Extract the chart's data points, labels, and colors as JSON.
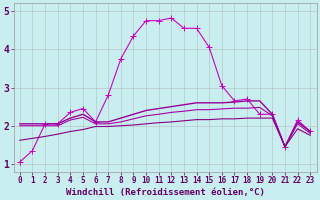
{
  "xlabel": "Windchill (Refroidissement éolien,°C)",
  "xlim_min": -0.5,
  "xlim_max": 23.5,
  "ylim_min": 0.8,
  "ylim_max": 5.2,
  "xtick_labels": [
    "0",
    "1",
    "2",
    "3",
    "4",
    "5",
    "6",
    "7",
    "8",
    "9",
    "10",
    "11",
    "12",
    "13",
    "14",
    "15",
    "16",
    "17",
    "18",
    "19",
    "20",
    "21",
    "22",
    "23"
  ],
  "ytick_values": [
    1,
    2,
    3,
    4,
    5
  ],
  "background_color": "#c8eef0",
  "grid_color": "#b0b0b0",
  "lines": [
    {
      "x": [
        0,
        1,
        2,
        3,
        4,
        5,
        6,
        7,
        8,
        9,
        10,
        11,
        12,
        13,
        14,
        15,
        16,
        17,
        18,
        19,
        20,
        21,
        22,
        23
      ],
      "y": [
        1.05,
        1.35,
        2.05,
        2.05,
        2.35,
        2.45,
        2.1,
        2.8,
        3.75,
        4.35,
        4.75,
        4.75,
        4.82,
        4.55,
        4.55,
        4.05,
        3.05,
        2.65,
        2.7,
        2.3,
        2.3,
        1.45,
        2.15,
        1.85
      ],
      "color": "#cc00cc",
      "marker": "+",
      "linewidth": 0.8,
      "markersize": 4
    },
    {
      "x": [
        0,
        1,
        2,
        3,
        4,
        5,
        6,
        7,
        8,
        9,
        10,
        11,
        12,
        13,
        14,
        15,
        16,
        17,
        18,
        19,
        20,
        21,
        22,
        23
      ],
      "y": [
        2.05,
        2.05,
        2.05,
        2.05,
        2.2,
        2.3,
        2.1,
        2.1,
        2.2,
        2.3,
        2.4,
        2.45,
        2.5,
        2.55,
        2.6,
        2.6,
        2.6,
        2.62,
        2.65,
        2.65,
        2.3,
        1.45,
        2.1,
        1.85
      ],
      "color": "#990099",
      "marker": null,
      "linewidth": 1.0,
      "markersize": 0
    },
    {
      "x": [
        0,
        1,
        2,
        3,
        4,
        5,
        6,
        7,
        8,
        9,
        10,
        11,
        12,
        13,
        14,
        15,
        16,
        17,
        18,
        19,
        20,
        21,
        22,
        23
      ],
      "y": [
        2.0,
        2.0,
        2.0,
        2.0,
        2.15,
        2.22,
        2.05,
        2.05,
        2.1,
        2.18,
        2.26,
        2.3,
        2.35,
        2.38,
        2.42,
        2.42,
        2.44,
        2.46,
        2.46,
        2.48,
        2.26,
        1.45,
        2.05,
        1.8
      ],
      "color": "#aa00aa",
      "marker": null,
      "linewidth": 0.8,
      "markersize": 0
    },
    {
      "x": [
        0,
        1,
        2,
        3,
        4,
        5,
        6,
        7,
        8,
        9,
        10,
        11,
        12,
        13,
        14,
        15,
        16,
        17,
        18,
        19,
        20,
        21,
        22,
        23
      ],
      "y": [
        1.62,
        1.67,
        1.72,
        1.78,
        1.85,
        1.9,
        1.98,
        1.98,
        2.0,
        2.02,
        2.05,
        2.08,
        2.1,
        2.13,
        2.16,
        2.16,
        2.18,
        2.18,
        2.2,
        2.2,
        2.2,
        1.45,
        1.92,
        1.75
      ],
      "color": "#880088",
      "marker": null,
      "linewidth": 0.8,
      "markersize": 0
    }
  ],
  "label_color": "#660066",
  "xlabel_fontsize": 6.5,
  "tick_fontsize": 5.5,
  "ytick_fontsize": 7
}
